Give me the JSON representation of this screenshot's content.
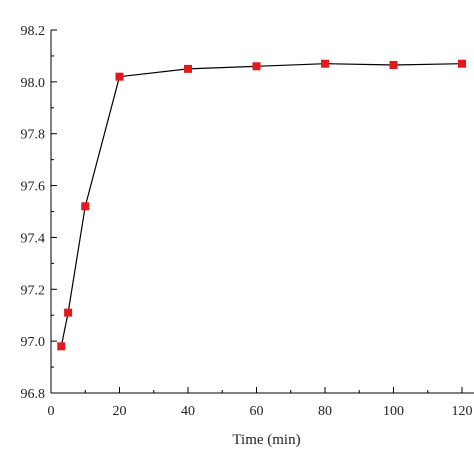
{
  "chart_data": {
    "type": "line",
    "title": "",
    "xlabel": "Time (min)",
    "ylabel": "",
    "xlim": [
      0,
      120
    ],
    "ylim": [
      96.8,
      98.2
    ],
    "x_ticks": [
      0,
      20,
      40,
      60,
      80,
      100,
      120
    ],
    "x_tick_labels": [
      "0",
      "20",
      "40",
      "60",
      "80",
      "100",
      "120"
    ],
    "y_ticks": [
      96.8,
      97.0,
      97.2,
      97.4,
      97.6,
      97.8,
      98.0,
      98.2
    ],
    "y_tick_labels": [
      "96.8",
      "97.0",
      "97.2",
      "97.4",
      "97.6",
      "97.8",
      "98.0",
      "98.2"
    ],
    "grid": false,
    "legend": "none",
    "series": [
      {
        "x": [
          3,
          5,
          10,
          20,
          40,
          60,
          80,
          100,
          120
        ],
        "y": [
          96.98,
          97.11,
          97.52,
          98.02,
          98.05,
          98.06,
          98.07,
          98.065,
          98.07
        ],
        "line_color": "#000000",
        "marker": "square",
        "marker_color": "#e31a1c"
      }
    ]
  }
}
